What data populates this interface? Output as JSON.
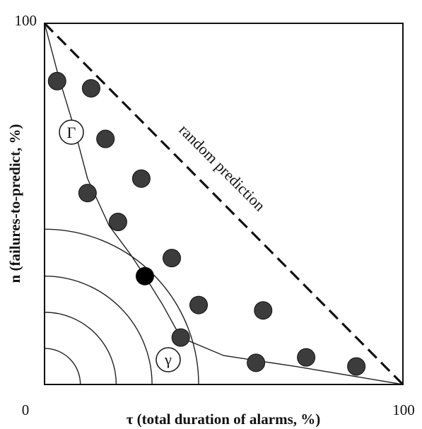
{
  "chart_data": {
    "type": "scatter",
    "title": "",
    "xlabel": "τ (total duration of alarms, %)",
    "ylabel": "n (failures-to-predict, %)",
    "xlim": [
      0,
      100
    ],
    "ylim": [
      0,
      100
    ],
    "x_tick_labels": [
      "0",
      "100"
    ],
    "y_tick_labels": [
      "100"
    ],
    "grid": false,
    "series": [
      {
        "points": [
          {
            "x": 3.5,
            "y": 84
          },
          {
            "x": 13,
            "y": 82
          },
          {
            "x": 17,
            "y": 68
          },
          {
            "x": 27,
            "y": 57
          },
          {
            "x": 12,
            "y": 53
          },
          {
            "x": 20.5,
            "y": 45
          },
          {
            "x": 35.5,
            "y": 35
          },
          {
            "x": 43,
            "y": 22
          },
          {
            "x": 61,
            "y": 20.5
          },
          {
            "x": 38,
            "y": 13
          },
          {
            "x": 59,
            "y": 6
          },
          {
            "x": 73,
            "y": 7.5
          },
          {
            "x": 87,
            "y": 5
          }
        ],
        "color": "#3c3c3c"
      },
      {
        "points": [
          {
            "x": 28,
            "y": 30
          }
        ],
        "color": "#000000"
      }
    ],
    "curves": {
      "error_diagram": {
        "label": "Γ",
        "points": [
          [
            0,
            100
          ],
          [
            4,
            85
          ],
          [
            8,
            72
          ],
          [
            12,
            57
          ],
          [
            18,
            44
          ],
          [
            24,
            36
          ],
          [
            28,
            30
          ],
          [
            33,
            22
          ],
          [
            38,
            13
          ],
          [
            50,
            8
          ],
          [
            70,
            5
          ],
          [
            100,
            0
          ]
        ]
      },
      "random_prediction": {
        "label": "random prediction",
        "points": [
          [
            0,
            100
          ],
          [
            100,
            0
          ]
        ]
      },
      "level_curves": {
        "label": "γ",
        "radii": [
          10,
          20,
          30,
          43
        ]
      }
    }
  }
}
